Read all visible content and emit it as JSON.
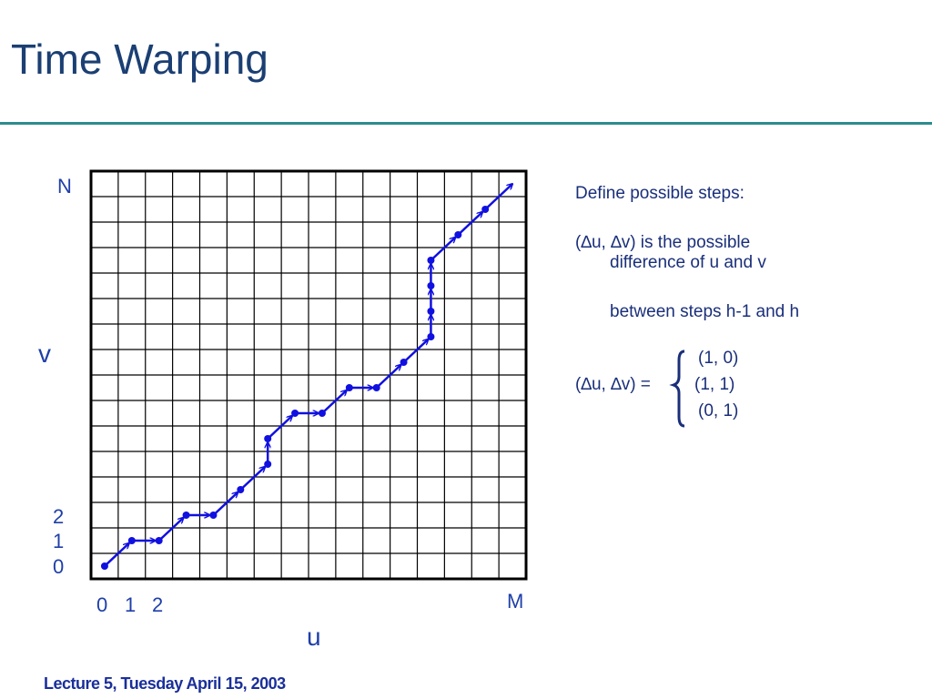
{
  "header": {
    "title": "Time Warping"
  },
  "graph": {
    "v_axis": {
      "top": "N",
      "label": "v",
      "ticks": [
        2,
        1,
        0
      ]
    },
    "u_axis": {
      "ticks": [
        0,
        1,
        2
      ],
      "end": "M",
      "label": "u"
    }
  },
  "text": {
    "intro": "Define possible steps:",
    "definition": [
      "(∆u, ∆v) is the possible",
      "difference of u and v"
    ],
    "condition": "between steps h-1 and h",
    "steps_label": "(∆u, ∆v) =",
    "steps": [
      "(1, 0)",
      "(1, 1)",
      "(0, 1)"
    ]
  },
  "footer": "Lecture 5, Tuesday April 15, 2003"
}
